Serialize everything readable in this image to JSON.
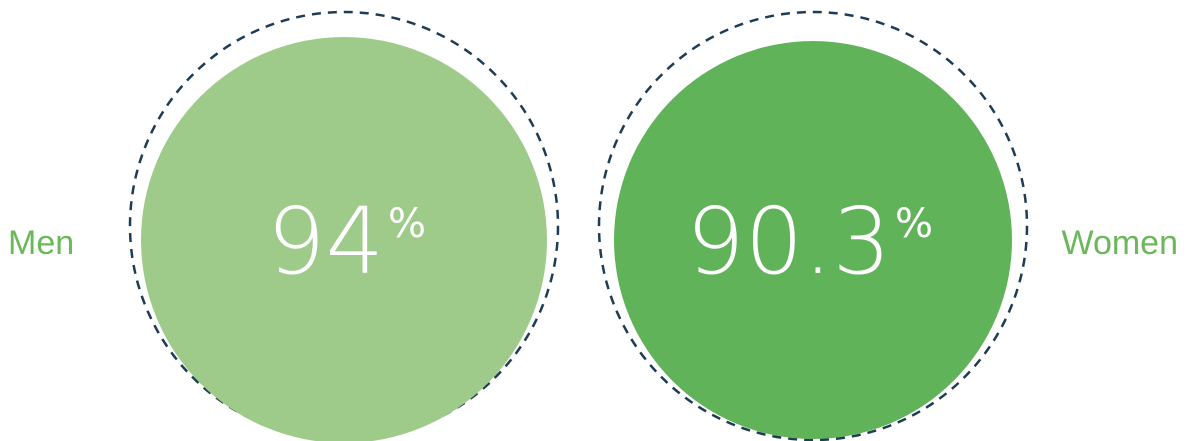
{
  "chart_data": {
    "type": "bubble",
    "categories": [
      "Men",
      "Women"
    ],
    "series": [
      {
        "values": [
          94,
          90.3
        ],
        "colors": [
          "#9ecb8a",
          "#61b35a"
        ]
      }
    ],
    "value_labels": [
      "94",
      "90.3"
    ],
    "unit": "%",
    "label_color": "#6ab85a",
    "ring_color": "#1e3d55",
    "ring_style": "dashed"
  }
}
